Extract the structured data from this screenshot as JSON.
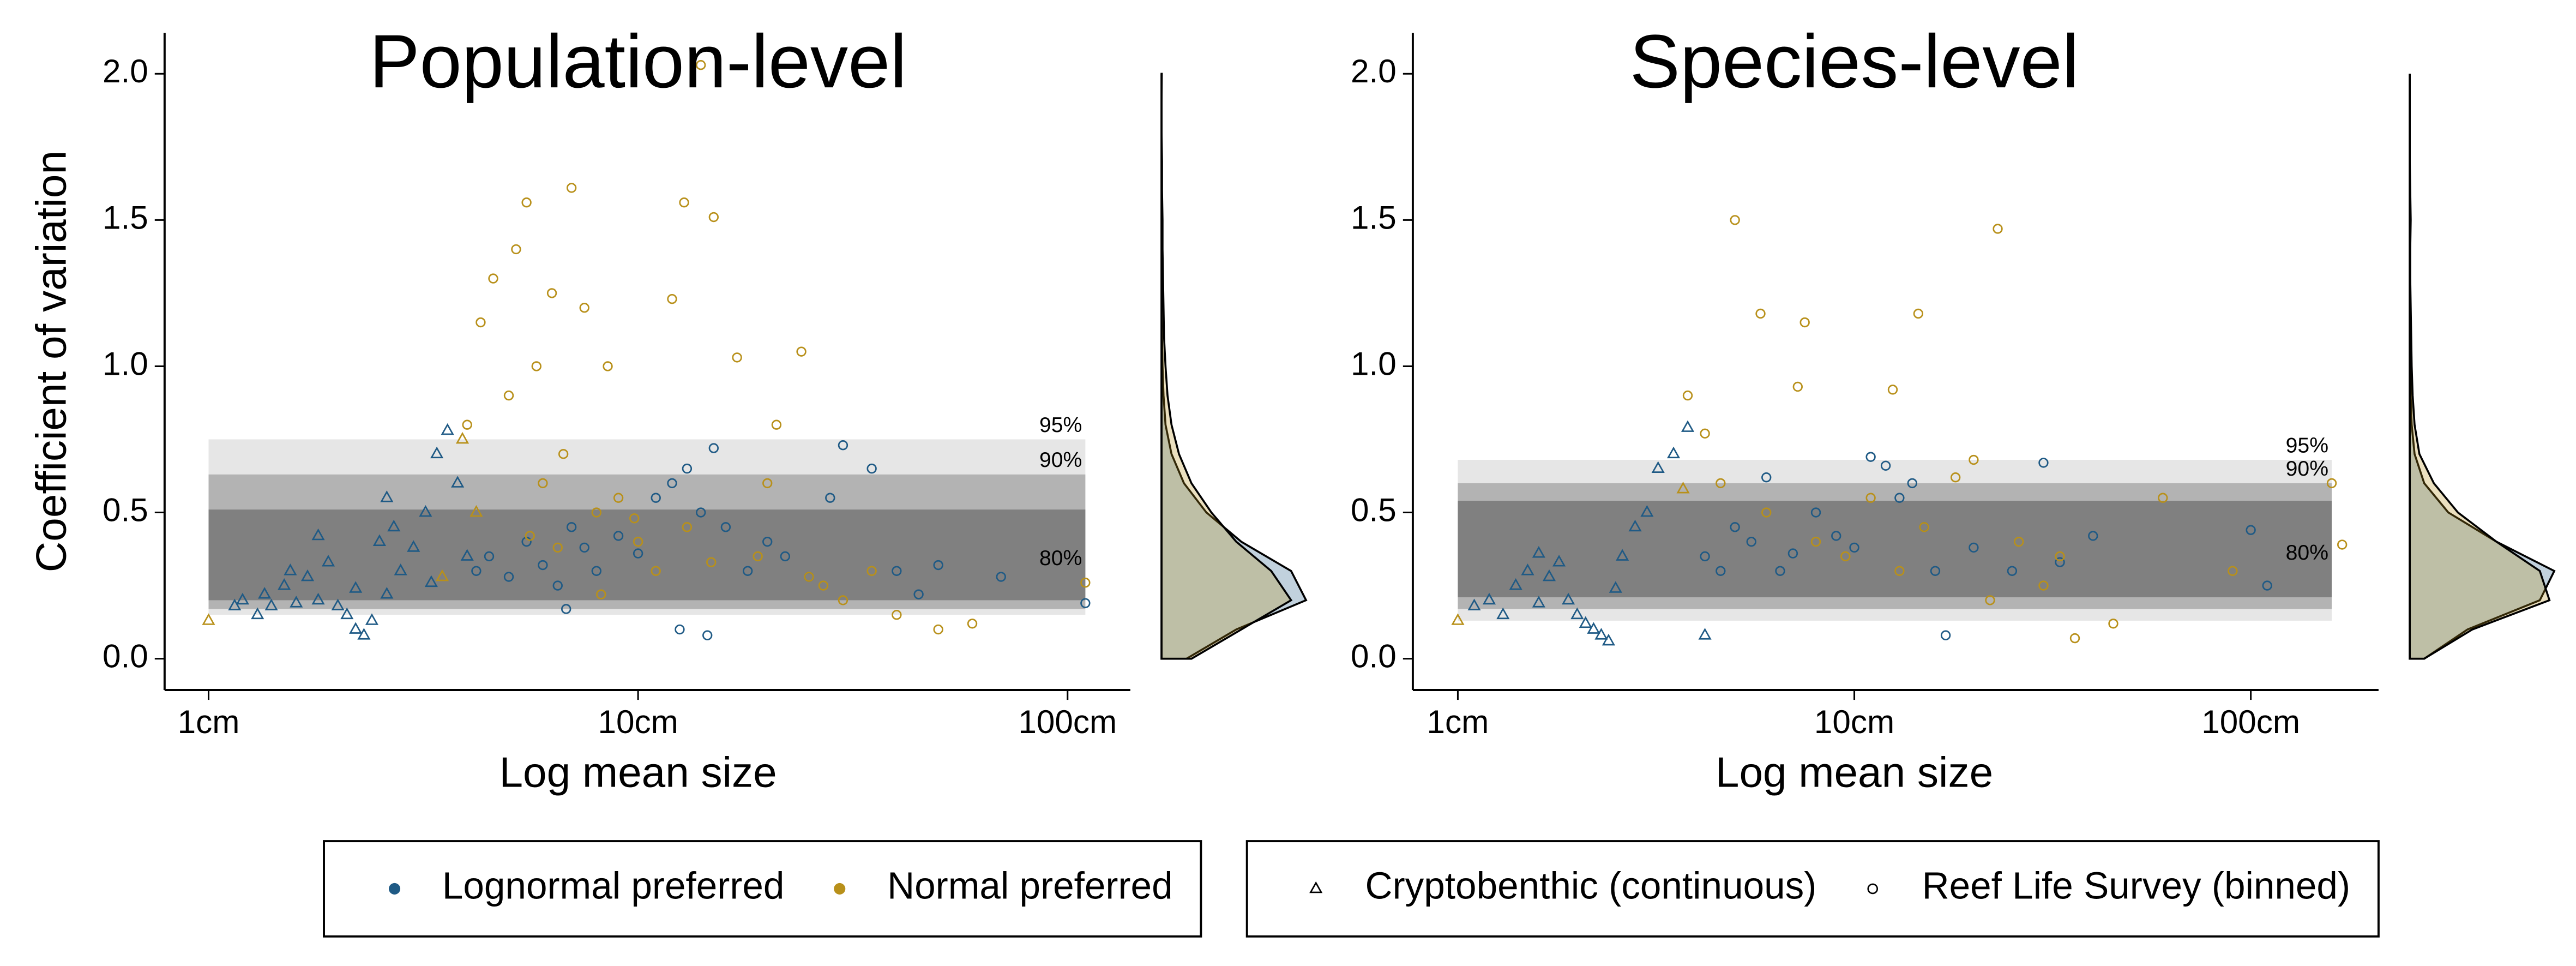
{
  "chart_data": [
    {
      "type": "scatter",
      "title": "Population-level",
      "x_label": "Log mean size",
      "y_label": "Coefficient of variation",
      "xscale": "log",
      "xlim": [
        0.79,
        140
      ],
      "ylim": [
        -0.107,
        2.14
      ],
      "xticks": [
        {
          "value": 1,
          "label": "1cm"
        },
        {
          "value": 10,
          "label": "10cm"
        },
        {
          "value": 100,
          "label": "100cm"
        }
      ],
      "yticks": [
        {
          "value": 0,
          "label": "0.0"
        },
        {
          "value": 0.5,
          "label": "0.5"
        },
        {
          "value": 1,
          "label": "1.0"
        },
        {
          "value": 1.5,
          "label": "1.5"
        },
        {
          "value": 2,
          "label": "2.0"
        }
      ],
      "bands": {
        "xlim": [
          1,
          110
        ],
        "items": [
          {
            "label": "95%",
            "ylim": [
              0.15,
              0.75
            ],
            "color": "#e6e6e6"
          },
          {
            "label": "90%",
            "ylim": [
              0.17,
              0.63
            ],
            "color": "#b3b3b3"
          },
          {
            "label": "80%",
            "ylim": [
              0.2,
              0.51
            ],
            "color": "#808080"
          }
        ]
      },
      "series": [
        {
          "color": "#1f5a85",
          "shape": "triangle",
          "x": [
            1.15,
            1.2,
            1.3,
            1.35,
            1.4,
            1.5,
            1.55,
            1.6,
            1.7,
            1.8,
            1.9,
            2.0,
            2.1,
            2.2,
            2.3,
            2.4,
            2.5,
            2.6,
            2.7,
            2.8,
            3.0,
            3.2,
            3.4,
            3.6,
            3.8,
            4.0,
            2.2,
            1.8,
            3.3,
            2.6
          ],
          "y": [
            0.18,
            0.2,
            0.15,
            0.22,
            0.18,
            0.25,
            0.3,
            0.19,
            0.28,
            0.2,
            0.33,
            0.18,
            0.15,
            0.1,
            0.08,
            0.13,
            0.4,
            0.22,
            0.45,
            0.3,
            0.38,
            0.5,
            0.7,
            0.78,
            0.6,
            0.35,
            0.24,
            0.42,
            0.26,
            0.55
          ]
        },
        {
          "color": "#b8901a",
          "shape": "triangle",
          "x": [
            1.0,
            3.9,
            4.2,
            3.5
          ],
          "y": [
            0.13,
            0.75,
            0.5,
            0.28
          ]
        },
        {
          "color": "#1f5a85",
          "shape": "circle",
          "x": [
            4.2,
            4.5,
            5,
            5.5,
            6,
            6.5,
            7,
            7.5,
            8,
            9,
            10,
            11,
            12,
            13,
            14,
            15,
            16,
            18,
            20,
            22,
            25,
            28,
            30,
            35,
            40,
            45,
            50,
            70,
            110,
            12.5,
            14.5,
            6.8
          ],
          "y": [
            0.3,
            0.35,
            0.28,
            0.4,
            0.32,
            0.25,
            0.45,
            0.38,
            0.3,
            0.42,
            0.36,
            0.55,
            0.6,
            0.65,
            0.5,
            0.72,
            0.45,
            0.3,
            0.4,
            0.35,
            0.28,
            0.55,
            0.73,
            0.65,
            0.3,
            0.22,
            0.32,
            0.28,
            0.19,
            0.1,
            0.08,
            0.17
          ]
        },
        {
          "color": "#b8901a",
          "shape": "circle",
          "x": [
            4,
            4.3,
            4.6,
            5,
            5.2,
            5.5,
            5.8,
            6,
            6.3,
            6.7,
            7,
            7.5,
            8,
            8.5,
            9,
            10,
            11,
            12,
            13,
            14,
            15,
            17,
            19,
            21,
            24,
            27,
            30,
            35,
            40,
            50,
            60,
            110,
            6.5,
            5.6,
            14.8,
            12.8,
            8.2,
            9.8,
            25,
            20
          ],
          "y": [
            0.8,
            1.15,
            1.3,
            0.9,
            1.4,
            1.56,
            1.0,
            0.6,
            1.25,
            0.7,
            1.61,
            1.2,
            0.5,
            1.0,
            0.55,
            0.4,
            0.3,
            1.23,
            0.45,
            2.03,
            1.51,
            1.03,
            0.35,
            0.8,
            1.05,
            0.25,
            0.2,
            0.3,
            0.15,
            0.1,
            0.12,
            0.26,
            0.38,
            0.42,
            0.33,
            1.56,
            0.22,
            0.48,
            0.28,
            0.6
          ]
        }
      ],
      "density": {
        "y": [
          0,
          0.1,
          0.2,
          0.3,
          0.4,
          0.5,
          0.6,
          0.7,
          0.8,
          0.9,
          1.0,
          1.1,
          1.2,
          1.3,
          1.4,
          1.5,
          1.6,
          1.7,
          1.8,
          1.9,
          2.0
        ],
        "series": [
          {
            "color": "#1f5a85",
            "values": [
              0.5,
              1.5,
              2.9,
              2.6,
              1.6,
              0.9,
              0.45,
              0.2,
              0.08,
              0.04,
              0.02,
              0.01,
              0,
              0,
              0,
              0,
              0,
              0,
              0,
              0,
              0
            ]
          },
          {
            "color": "#b8901a",
            "values": [
              0.6,
              1.6,
              2.6,
              2.2,
              1.5,
              1.0,
              0.6,
              0.35,
              0.2,
              0.12,
              0.08,
              0.05,
              0.04,
              0.03,
              0.02,
              0.02,
              0.01,
              0.01,
              0,
              0,
              0.005
            ]
          }
        ]
      }
    },
    {
      "type": "scatter",
      "title": "Species-level",
      "x_label": "Log mean size",
      "xscale": "log",
      "xlim": [
        0.77,
        210
      ],
      "ylim": [
        -0.107,
        2.14
      ],
      "xticks": [
        {
          "value": 1,
          "label": "1cm"
        },
        {
          "value": 10,
          "label": "10cm"
        },
        {
          "value": 100,
          "label": "100cm"
        }
      ],
      "yticks": [
        {
          "value": 0,
          "label": "0.0"
        },
        {
          "value": 0.5,
          "label": "0.5"
        },
        {
          "value": 1,
          "label": "1.0"
        },
        {
          "value": 1.5,
          "label": "1.5"
        },
        {
          "value": 2,
          "label": "2.0"
        }
      ],
      "bands": {
        "xlim": [
          1,
          160
        ],
        "items": [
          {
            "label": "95%",
            "ylim": [
              0.13,
              0.68
            ],
            "color": "#e6e6e6"
          },
          {
            "label": "90%",
            "ylim": [
              0.17,
              0.6
            ],
            "color": "#b3b3b3"
          },
          {
            "label": "80%",
            "ylim": [
              0.21,
              0.54
            ],
            "color": "#808080"
          }
        ]
      },
      "series": [
        {
          "color": "#1f5a85",
          "shape": "triangle",
          "x": [
            1.1,
            1.2,
            1.3,
            1.4,
            1.5,
            1.6,
            1.7,
            1.8,
            1.9,
            2.0,
            2.1,
            2.2,
            2.3,
            2.4,
            2.6,
            2.8,
            3.0,
            3.2,
            3.5,
            3.8,
            4.2,
            1.6,
            2.5
          ],
          "y": [
            0.18,
            0.2,
            0.15,
            0.25,
            0.3,
            0.19,
            0.28,
            0.33,
            0.2,
            0.15,
            0.12,
            0.1,
            0.08,
            0.06,
            0.35,
            0.45,
            0.5,
            0.65,
            0.7,
            0.79,
            0.08,
            0.36,
            0.24
          ]
        },
        {
          "color": "#b8901a",
          "shape": "triangle",
          "x": [
            1.0,
            3.7
          ],
          "y": [
            0.13,
            0.58
          ]
        },
        {
          "color": "#1f5a85",
          "shape": "circle",
          "x": [
            4.2,
            4.6,
            5,
            5.5,
            6,
            6.5,
            7,
            8,
            9,
            10,
            11,
            12,
            13,
            14,
            15,
            17,
            20,
            25,
            30,
            33,
            40,
            100,
            110,
            16
          ],
          "y": [
            0.35,
            0.3,
            0.45,
            0.4,
            0.62,
            0.3,
            0.36,
            0.5,
            0.42,
            0.38,
            0.69,
            0.66,
            0.55,
            0.6,
            0.45,
            0.08,
            0.38,
            0.3,
            0.67,
            0.33,
            0.42,
            0.44,
            0.25,
            0.3
          ]
        },
        {
          "color": "#b8901a",
          "shape": "circle",
          "x": [
            3.8,
            4.2,
            4.6,
            5,
            5.8,
            7.2,
            7.5,
            12.5,
            14.5,
            23,
            6,
            8,
            9.5,
            11,
            13,
            15,
            18,
            20,
            22,
            26,
            30,
            36,
            45,
            60,
            90,
            160,
            170,
            33
          ],
          "y": [
            0.9,
            0.77,
            0.6,
            1.5,
            1.18,
            0.93,
            1.15,
            0.92,
            1.18,
            1.47,
            0.5,
            0.4,
            0.35,
            0.55,
            0.3,
            0.45,
            0.62,
            0.68,
            0.2,
            0.4,
            0.25,
            0.07,
            0.12,
            0.55,
            0.3,
            0.6,
            0.39,
            0.35
          ]
        }
      ],
      "density": {
        "y": [
          0,
          0.1,
          0.2,
          0.3,
          0.4,
          0.5,
          0.6,
          0.7,
          0.8,
          0.9,
          1.0,
          1.1,
          1.2,
          1.3,
          1.4,
          1.5,
          1.6,
          1.7,
          1.8,
          1.9,
          2.0
        ],
        "series": [
          {
            "color": "#1f5a85",
            "values": [
              0.3,
              1.2,
              2.7,
              3.0,
              1.8,
              0.8,
              0.3,
              0.1,
              0.04,
              0.02,
              0.01,
              0,
              0,
              0,
              0,
              0,
              0,
              0,
              0,
              0,
              0
            ]
          },
          {
            "color": "#b8901a",
            "values": [
              0.3,
              1.3,
              2.9,
              2.7,
              1.8,
              1.0,
              0.5,
              0.2,
              0.1,
              0.06,
              0.04,
              0.03,
              0.02,
              0.01,
              0.01,
              0.02,
              0.01,
              0,
              0,
              0,
              0
            ]
          }
        ]
      }
    }
  ],
  "legend": {
    "colors": [
      {
        "label": "Lognormal preferred",
        "color": "#1f5a85"
      },
      {
        "label": "Normal preferred",
        "color": "#b8901a"
      }
    ],
    "shapes": [
      {
        "label": "Cryptobenthic (continuous)",
        "shape": "triangle"
      },
      {
        "label": "Reef Life Survey (binned)",
        "shape": "circle"
      }
    ]
  }
}
